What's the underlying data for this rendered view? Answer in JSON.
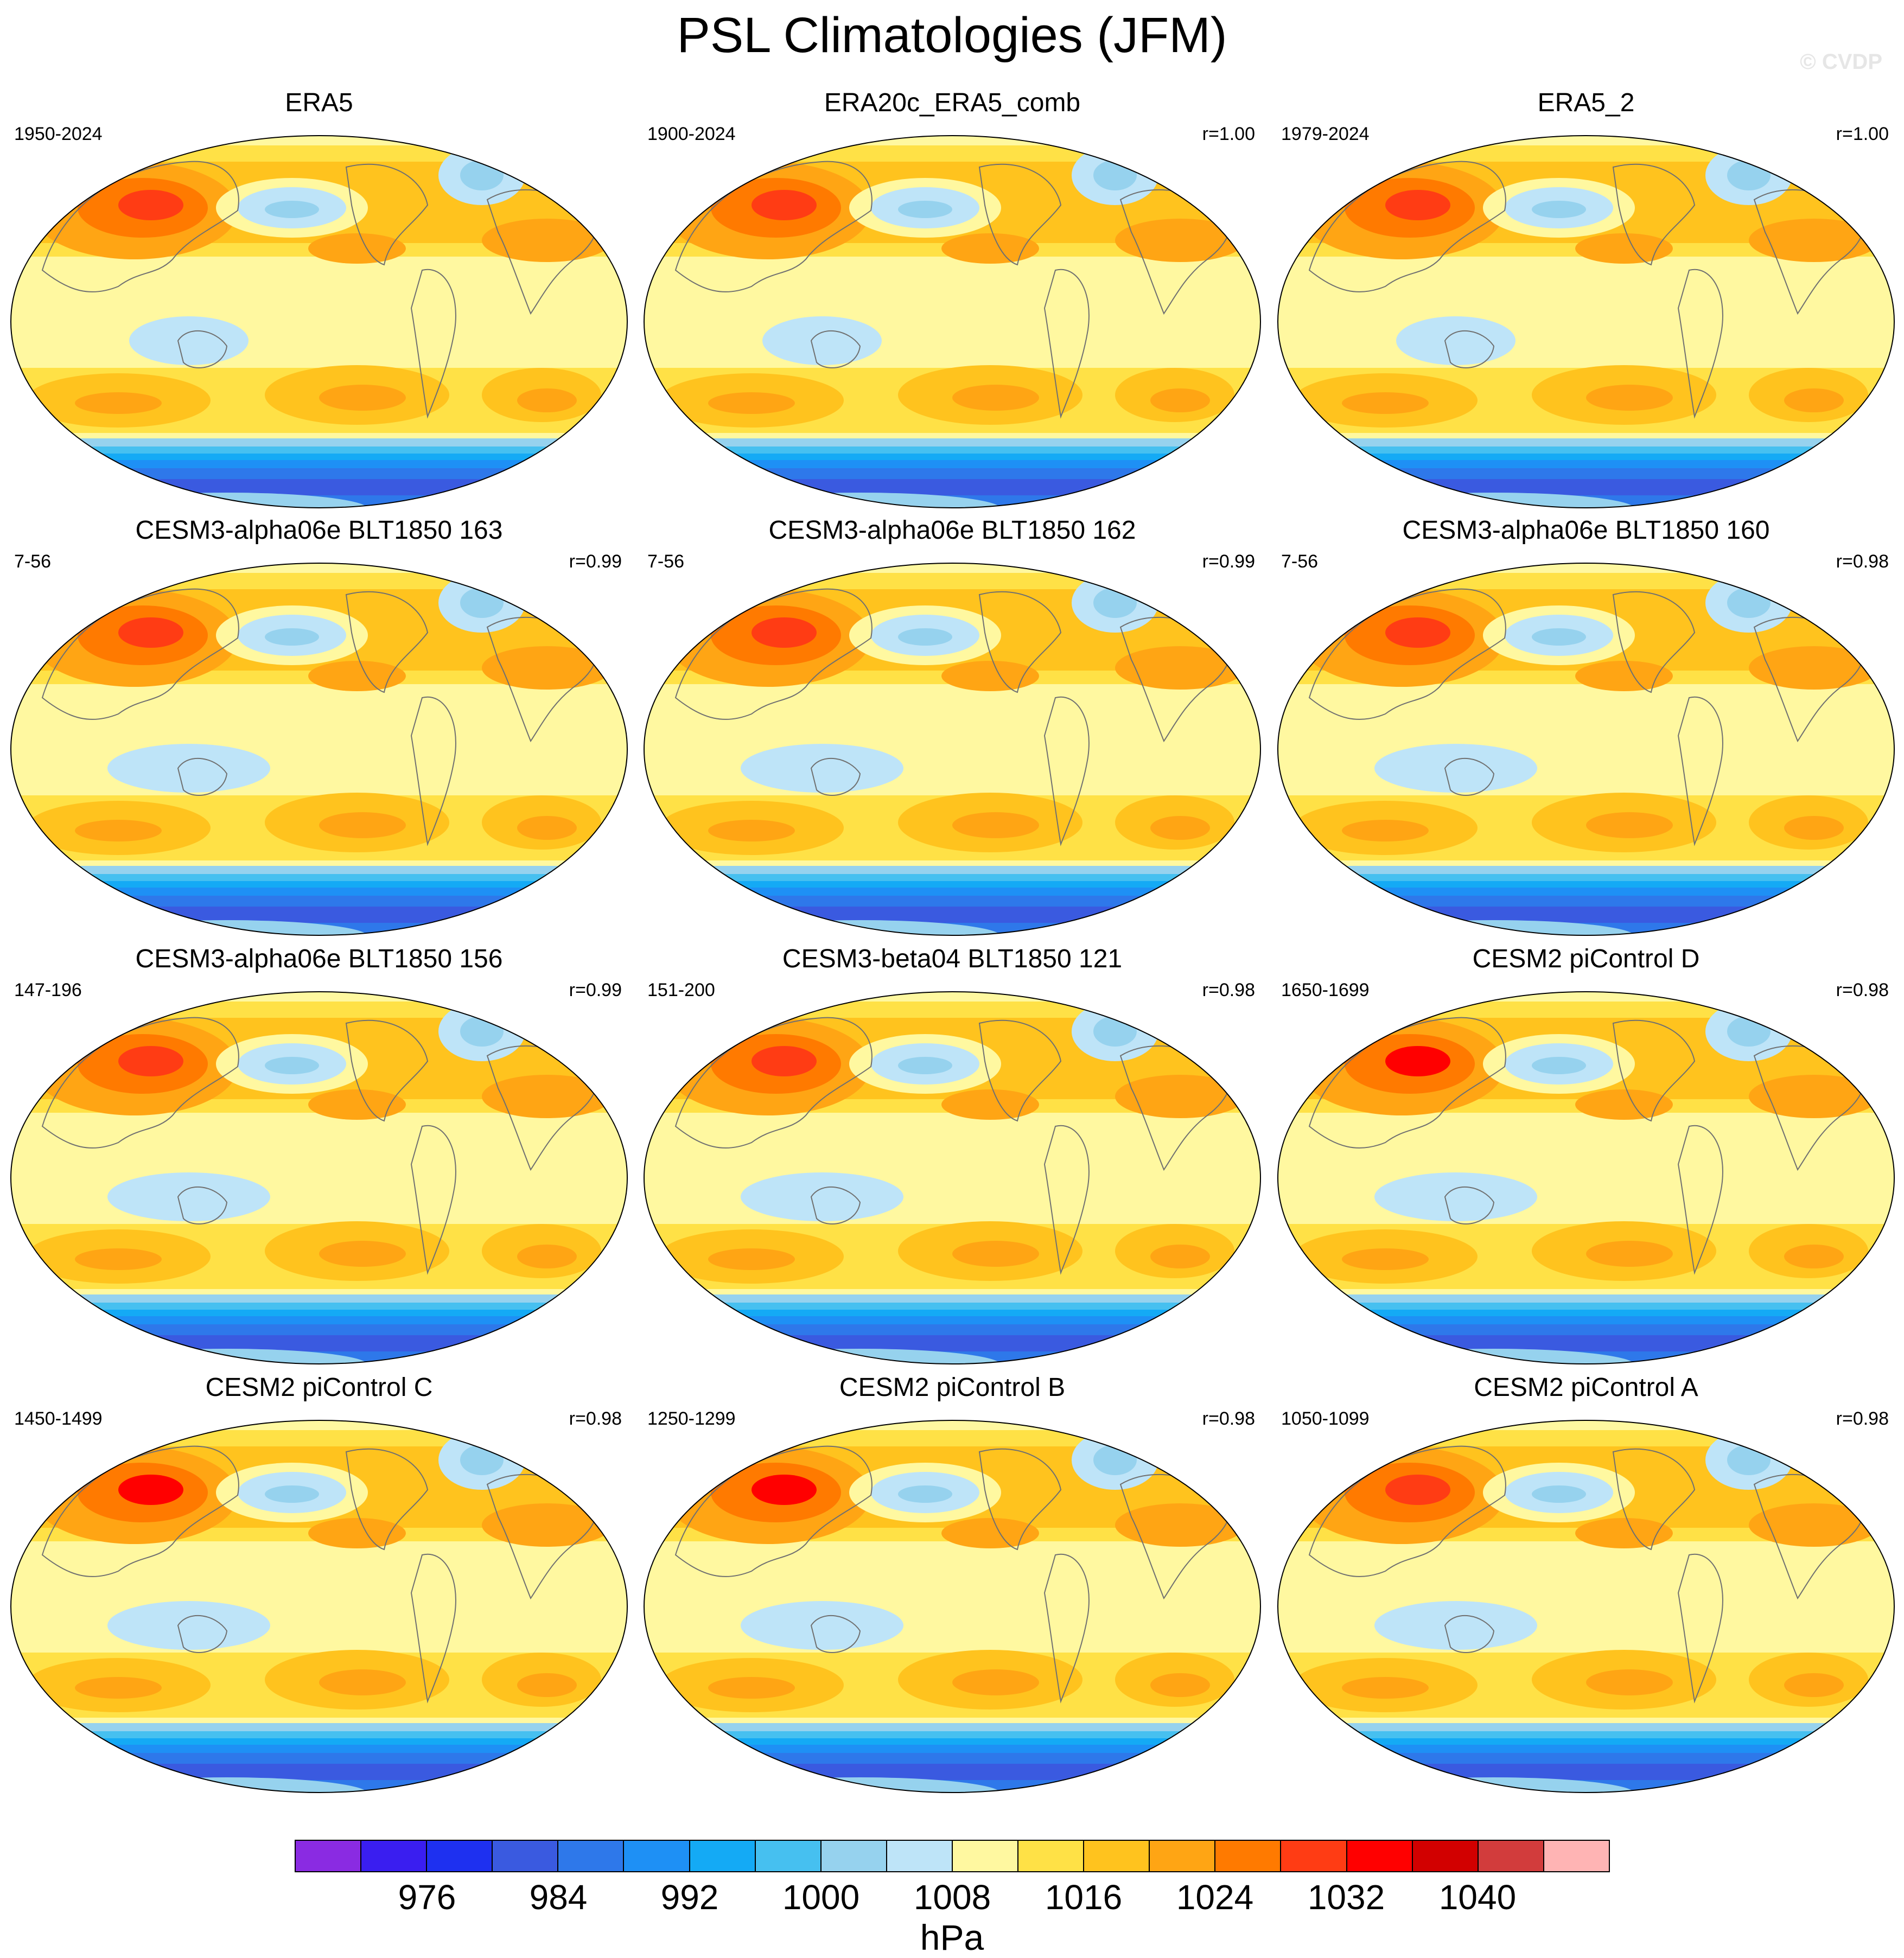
{
  "title": "PSL Climatologies (JFM)",
  "watermark": "© CVDP",
  "panels": [
    {
      "title": "ERA5",
      "period": "1950-2024",
      "corr": ""
    },
    {
      "title": "ERA20c_ERA5_comb",
      "period": "1900-2024",
      "corr": "r=1.00"
    },
    {
      "title": "ERA5_2",
      "period": "1979-2024",
      "corr": "r=1.00"
    },
    {
      "title": "CESM3-alpha06e BLT1850 163",
      "period": "7-56",
      "corr": "r=0.99"
    },
    {
      "title": "CESM3-alpha06e BLT1850 162",
      "period": "7-56",
      "corr": "r=0.99"
    },
    {
      "title": "CESM3-alpha06e BLT1850 160",
      "period": "7-56",
      "corr": "r=0.98"
    },
    {
      "title": "CESM3-alpha06e BLT1850 156",
      "period": "147-196",
      "corr": "r=0.99"
    },
    {
      "title": "CESM3-beta04 BLT1850 121",
      "period": "151-200",
      "corr": "r=0.98"
    },
    {
      "title": "CESM2 piControl D",
      "period": "1650-1699",
      "corr": "r=0.98"
    },
    {
      "title": "CESM2 piControl C",
      "period": "1450-1499",
      "corr": "r=0.98"
    },
    {
      "title": "CESM2 piControl B",
      "period": "1250-1299",
      "corr": "r=0.98"
    },
    {
      "title": "CESM2 piControl A",
      "period": "1050-1099",
      "corr": "r=0.98"
    }
  ],
  "colorbar": {
    "colors": [
      "#8a2be2",
      "#3a1ef0",
      "#1e30f0",
      "#3a5ae0",
      "#2e78ea",
      "#1e90f5",
      "#14aaf5",
      "#46c0f0",
      "#96d2ee",
      "#bee4f8",
      "#fff8a0",
      "#ffe146",
      "#ffc31e",
      "#ffa514",
      "#ff7a00",
      "#ff3c14",
      "#ff0000",
      "#d20000",
      "#d23c3c",
      "#ffb4b4"
    ],
    "ticks": [
      "976",
      "984",
      "992",
      "1000",
      "1008",
      "1016",
      "1024",
      "1032",
      "1040"
    ],
    "units": "hPa"
  }
}
